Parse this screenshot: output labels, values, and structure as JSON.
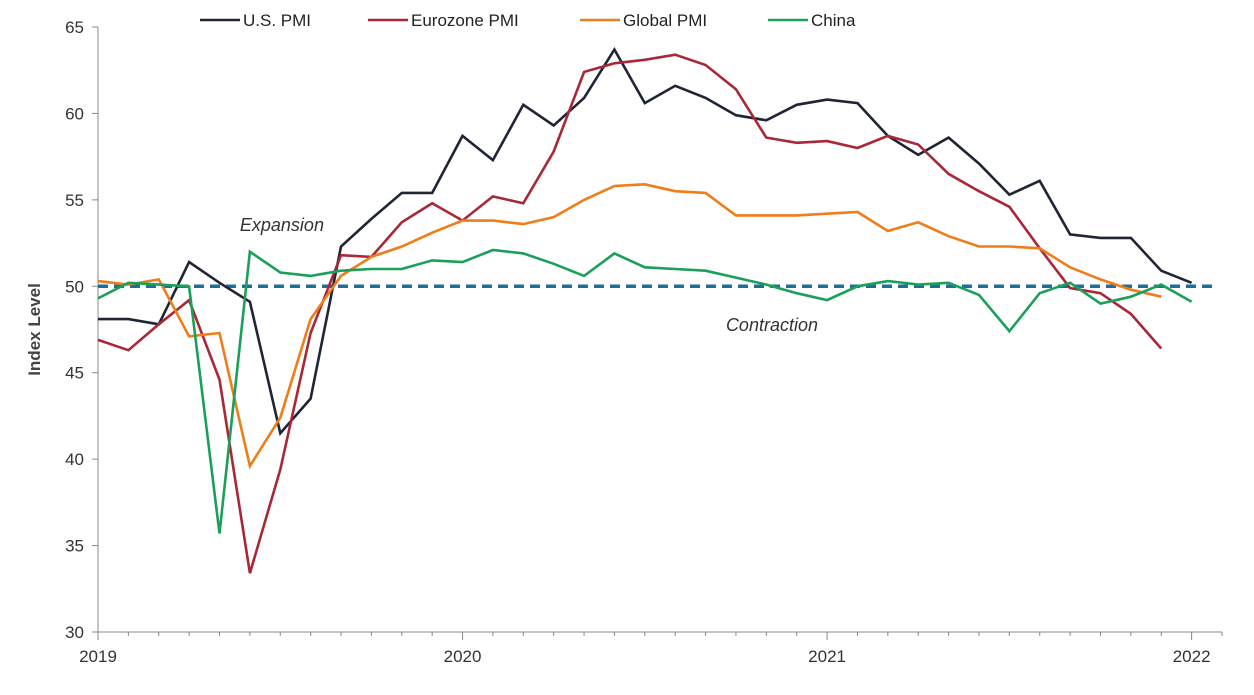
{
  "chart_data": {
    "type": "line",
    "title": "",
    "xlabel": "",
    "ylabel": "Index Level",
    "ylim": [
      30,
      65
    ],
    "yticks": [
      30,
      35,
      40,
      45,
      50,
      55,
      60,
      65
    ],
    "xlim": [
      "2019-01",
      "2022-02"
    ],
    "xticks": [
      "2019",
      "2020",
      "2021",
      "2022"
    ],
    "grid": false,
    "legend_position": "top",
    "months": [
      "2019-01",
      "2019-02",
      "2019-03",
      "2019-04",
      "2019-05",
      "2019-06",
      "2019-07",
      "2019-08",
      "2019-09",
      "2019-10",
      "2019-11",
      "2019-12",
      "2020-01",
      "2020-02",
      "2020-03",
      "2020-04",
      "2020-05",
      "2020-06",
      "2020-07",
      "2020-08",
      "2020-09",
      "2020-10",
      "2020-11",
      "2020-12",
      "2021-01",
      "2021-02",
      "2021-03",
      "2021-04",
      "2021-05",
      "2021-06",
      "2021-07",
      "2021-08",
      "2021-09",
      "2021-10",
      "2021-11",
      "2021-12",
      "2022-01"
    ],
    "series": [
      {
        "name": "U.S. PMI",
        "color": "#1f2535",
        "values": [
          48.1,
          48.1,
          47.8,
          51.4,
          50.2,
          49.1,
          41.5,
          43.5,
          52.3,
          53.9,
          55.4,
          55.4,
          58.7,
          57.3,
          60.5,
          59.3,
          60.9,
          63.7,
          60.6,
          61.6,
          60.9,
          59.9,
          59.6,
          60.5,
          60.8,
          60.6,
          58.7,
          57.6,
          58.6,
          57.1,
          55.3,
          56.1,
          53.0,
          52.8,
          52.8,
          50.9,
          50.2
        ]
      },
      {
        "name": "Eurozone PMI",
        "color": "#a82838",
        "values": [
          46.9,
          46.3,
          47.8,
          49.2,
          44.6,
          33.4,
          39.4,
          47.3,
          51.8,
          51.7,
          53.7,
          54.8,
          53.8,
          55.2,
          54.8,
          57.8,
          62.4,
          62.9,
          63.1,
          63.4,
          62.8,
          61.4,
          58.6,
          58.3,
          58.4,
          58.0,
          58.7,
          58.2,
          56.5,
          55.5,
          54.6,
          52.2,
          49.9,
          49.6,
          48.4,
          46.4,
          null
        ]
      },
      {
        "name": "Global PMI",
        "color": "#ef7d1a",
        "values": [
          50.3,
          50.1,
          50.4,
          47.1,
          47.3,
          39.6,
          42.4,
          48.1,
          50.6,
          51.7,
          52.3,
          53.1,
          53.8,
          53.8,
          53.6,
          54.0,
          55.0,
          55.8,
          55.9,
          55.5,
          55.4,
          54.1,
          54.1,
          54.1,
          54.2,
          54.3,
          53.2,
          53.7,
          52.9,
          52.3,
          52.3,
          52.2,
          51.1,
          50.4,
          49.8,
          49.4,
          null
        ]
      },
      {
        "name": "China",
        "color": "#1aa05a",
        "values": [
          49.3,
          50.2,
          50.1,
          50.0,
          35.7,
          52.0,
          50.8,
          50.6,
          50.9,
          51.0,
          51.0,
          51.5,
          51.4,
          52.1,
          51.9,
          51.3,
          50.6,
          51.9,
          51.1,
          51.0,
          50.9,
          50.5,
          50.1,
          49.6,
          49.2,
          50.0,
          50.3,
          50.1,
          50.2,
          49.5,
          47.4,
          49.6,
          50.2,
          49.0,
          49.4,
          50.1,
          49.1
        ]
      }
    ],
    "reference_line": {
      "value": 50,
      "color": "#1f6e96",
      "dashed": true
    },
    "annotations": [
      {
        "text": "Expansion",
        "x": "2019-06",
        "y": 53.2
      },
      {
        "text": "Contraction",
        "x": "2020-10",
        "y": 47.4
      }
    ]
  }
}
